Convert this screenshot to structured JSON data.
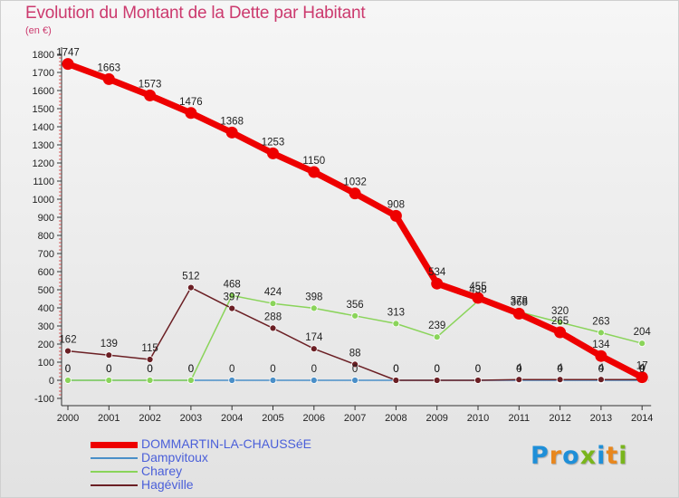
{
  "title": "Evolution du Montant de la Dette par Habitant",
  "subtitle": "(en €)",
  "logo": {
    "text": "Proxiti",
    "letter_colors": [
      "#1f8fd8",
      "#e8871e",
      "#1f8fd8",
      "#79b51c",
      "#1f8fd8",
      "#e8871e",
      "#79b51c"
    ]
  },
  "chart_data": {
    "type": "line",
    "title": "Evolution du Montant de la Dette par Habitant",
    "ylabel": "(en €)",
    "xlabel": "",
    "x": [
      "2000",
      "2001",
      "2002",
      "2003",
      "2004",
      "2005",
      "2006",
      "2007",
      "2008",
      "2009",
      "2010",
      "2011",
      "2012",
      "2013",
      "2014"
    ],
    "ylim": [
      -100,
      1800
    ],
    "yticks": [
      "-100",
      "0",
      "100",
      "200",
      "300",
      "400",
      "500",
      "600",
      "700",
      "800",
      "900",
      "1000",
      "1100",
      "1200",
      "1300",
      "1400",
      "1500",
      "1600",
      "1700",
      "1800"
    ],
    "grid": false,
    "legend_position": "bottom-left",
    "series": [
      {
        "name": "DOMMARTIN-LA-CHAUSSéE",
        "color": "#ee0000",
        "values": [
          1747,
          1663,
          1573,
          1476,
          1368,
          1253,
          1150,
          1032,
          908,
          534,
          455,
          368,
          265,
          134,
          17
        ],
        "labels": [
          "1747",
          "1663",
          "1573",
          "1476",
          "1368",
          "1253",
          "1150",
          "1032",
          "908",
          "534",
          "455",
          "368",
          "265",
          "134",
          "17"
        ]
      },
      {
        "name": "Dampvitoux",
        "color": "#4a8fc8",
        "values": [
          0,
          0,
          0,
          0,
          0,
          0,
          0,
          0,
          0,
          0,
          0,
          0,
          0,
          0,
          0
        ],
        "labels": [
          "0",
          "0",
          "0",
          "0",
          "0",
          "0",
          "0",
          "0",
          "0",
          "0",
          "0",
          "0",
          "0",
          "0",
          "0"
        ]
      },
      {
        "name": "Charey",
        "color": "#8ad45a",
        "values": [
          0,
          0,
          0,
          0,
          468,
          424,
          398,
          356,
          313,
          239,
          438,
          378,
          320,
          263,
          204
        ],
        "labels": [
          "0",
          "0",
          "0",
          "0",
          "468",
          "424",
          "398",
          "356",
          "313",
          "239",
          "438",
          "378",
          "320",
          "263",
          "204"
        ]
      },
      {
        "name": "Hagéville",
        "color": "#6b1f24",
        "values": [
          162,
          139,
          115,
          512,
          397,
          288,
          174,
          88,
          0,
          0,
          0,
          4,
          4,
          4,
          4
        ],
        "labels": [
          "162",
          "139",
          "115",
          "512",
          "397",
          "288",
          "174",
          "88",
          "0",
          "0",
          "0",
          "4",
          "4",
          "4",
          "4"
        ]
      }
    ]
  }
}
